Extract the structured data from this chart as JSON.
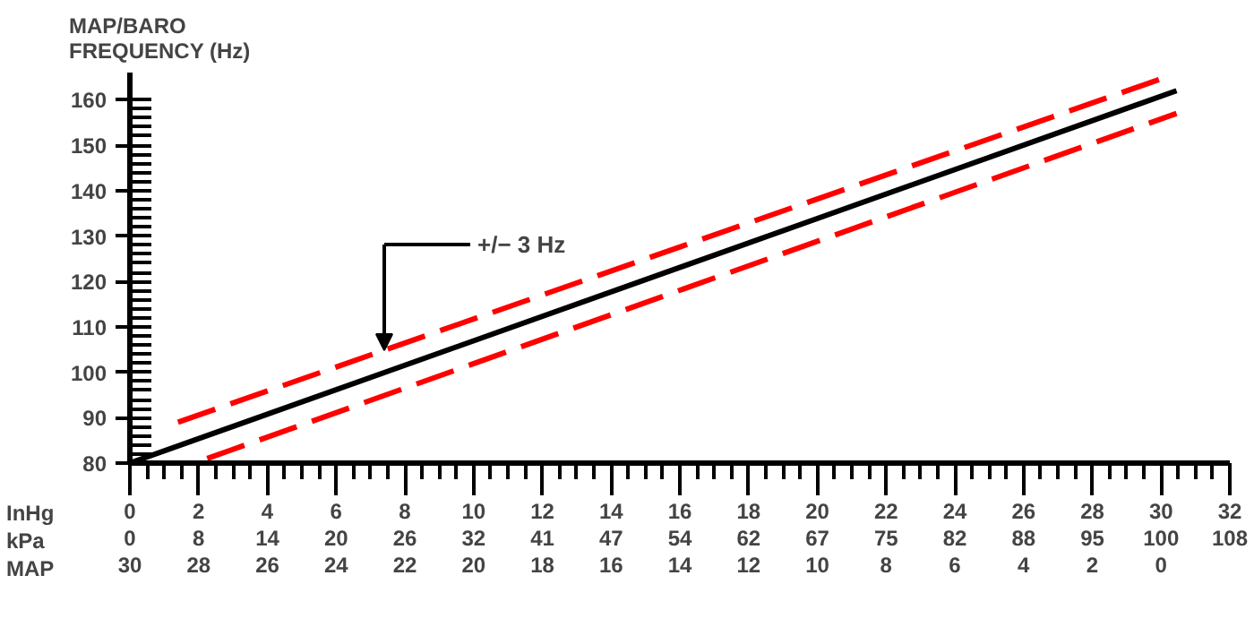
{
  "chart_data": {
    "type": "line",
    "ylabel": "MAP/BARO\nFREQUENCY (Hz)",
    "xlabel": "InHg",
    "x2label": "MAP",
    "series": [
      {
        "color": "#000000",
        "line_style": "solid",
        "x": [
          0,
          30.45
        ],
        "values": [
          80,
          162
        ]
      },
      {
        "color": "#ff0000",
        "line_style": "dashed",
        "x": [
          1.4,
          30.15
        ],
        "values": [
          89,
          165
        ]
      },
      {
        "color": "#ff0000",
        "line_style": "dashed",
        "x": [
          2.25,
          30.45
        ],
        "values": [
          81,
          157
        ]
      }
    ],
    "xlim": [
      0,
      32
    ],
    "ylim": [
      80,
      166
    ],
    "xticks": [
      0,
      2,
      4,
      6,
      8,
      10,
      12,
      14,
      16,
      18,
      20,
      22,
      24,
      26,
      28,
      30,
      32
    ],
    "yticks": [
      80,
      90,
      100,
      110,
      120,
      130,
      140,
      150,
      160
    ],
    "x2lim": [
      30,
      -2
    ],
    "x2ticks": [
      30,
      28,
      26,
      24,
      22,
      20,
      18,
      16,
      14,
      12,
      10,
      8,
      6,
      4,
      2,
      0
    ],
    "annotations": [
      "+/− 3 Hz",
      "kPa",
      "0",
      "8",
      "14",
      "20",
      "26",
      "32",
      "41",
      "47",
      "54",
      "62",
      "67",
      "75",
      "82",
      "88",
      "95",
      "100",
      "108"
    ],
    "grid": false,
    "marker": "none"
  }
}
